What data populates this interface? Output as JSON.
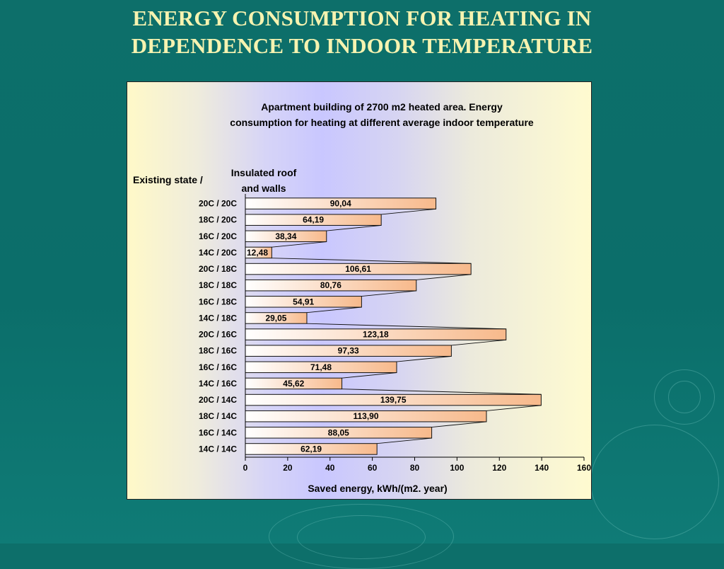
{
  "slide": {
    "title_line1": "ENERGY CONSUMPTION FOR HEATING IN",
    "title_line2": "DEPENDENCE TO INDOOR TEMPERATURE"
  },
  "chart_data": {
    "type": "bar",
    "orientation": "horizontal",
    "title_line1": "Apartment building of 2700 m2 heated area.   Energy",
    "title_line2": "consumption for heating at different average indoor temperature",
    "category_header_left": "Existing state /",
    "category_header_right_line1": "Insulated roof",
    "category_header_right_line2": "and walls",
    "xlabel": "Saved energy, kWh/(m2. year)",
    "xlim": [
      0,
      160
    ],
    "xticks": [
      0,
      20,
      40,
      60,
      80,
      100,
      120,
      140,
      160
    ],
    "grid": false,
    "legend": "none",
    "bar_color_left": "#ffffff",
    "bar_color_right": "#f7b98b",
    "categories": [
      "20C / 20C",
      "18C / 20C",
      "16C / 20C",
      "14C / 20C",
      "20C / 18C",
      "18C / 18C",
      "16C / 18C",
      "14C / 18C",
      "20C / 16C",
      "18C / 16C",
      "16C / 16C",
      "14C / 16C",
      "20C / 14C",
      "18C / 14C",
      "16C / 14C",
      "14C / 14C"
    ],
    "values": [
      90.04,
      64.19,
      38.34,
      12.48,
      106.61,
      80.76,
      54.91,
      29.05,
      123.18,
      97.33,
      71.48,
      45.62,
      139.75,
      113.9,
      88.05,
      62.19
    ],
    "value_labels": [
      "90,04",
      "64,19",
      "38,34",
      "12,48",
      "106,61",
      "80,76",
      "54,91",
      "29,05",
      "123,18",
      "97,33",
      "71,48",
      "45,62",
      "139,75",
      "113,90",
      "88,05",
      "62,19"
    ]
  }
}
